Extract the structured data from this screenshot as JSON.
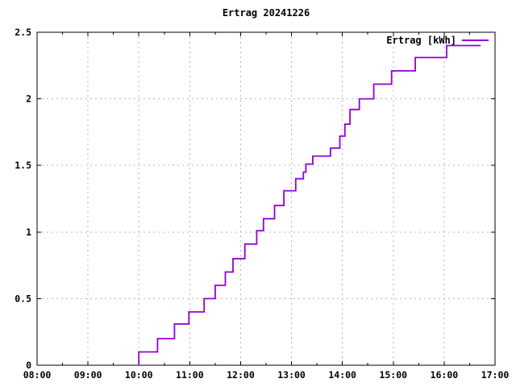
{
  "title": "Ertrag 20241226",
  "chart_data": {
    "type": "line",
    "subtype": "step-after",
    "title": "Ertrag 20241226",
    "legend_label": "Ertrag [kWh]",
    "legend_position": "top-right-inside",
    "grid": true,
    "colors": {
      "line": "#9400d3",
      "grid": "#b5b5b5",
      "axis": "#000000",
      "text": "#000000",
      "background": "#ffffff"
    },
    "xlabel": "",
    "ylabel": "",
    "x_axis": {
      "tick_labels": [
        "08:00",
        "09:00",
        "10:00",
        "11:00",
        "12:00",
        "13:00",
        "14:00",
        "15:00",
        "16:00",
        "17:00"
      ],
      "range_hours": [
        8,
        17
      ],
      "minor_tick_every_minutes": 30
    },
    "y_axis": {
      "tick_labels": [
        "0",
        "0.5",
        "1",
        "1.5",
        "2",
        "2.5"
      ],
      "tick_values": [
        0,
        0.5,
        1,
        1.5,
        2,
        2.5
      ],
      "range": [
        0,
        2.5
      ]
    },
    "series": [
      {
        "name": "Ertrag [kWh]",
        "unit": "kWh",
        "points": [
          [
            "10:00",
            0.0
          ],
          [
            "10:00",
            0.1
          ],
          [
            "10:22",
            0.2
          ],
          [
            "10:42",
            0.31
          ],
          [
            "10:59",
            0.4
          ],
          [
            "11:17",
            0.5
          ],
          [
            "11:30",
            0.6
          ],
          [
            "11:42",
            0.7
          ],
          [
            "11:51",
            0.8
          ],
          [
            "12:05",
            0.91
          ],
          [
            "12:19",
            1.01
          ],
          [
            "12:27",
            1.1
          ],
          [
            "12:40",
            1.2
          ],
          [
            "12:51",
            1.31
          ],
          [
            "13:05",
            1.4
          ],
          [
            "13:14",
            1.45
          ],
          [
            "13:17",
            1.51
          ],
          [
            "13:25",
            1.57
          ],
          [
            "13:46",
            1.63
          ],
          [
            "13:57",
            1.72
          ],
          [
            "14:03",
            1.81
          ],
          [
            "14:09",
            1.92
          ],
          [
            "14:20",
            2.0
          ],
          [
            "14:37",
            2.11
          ],
          [
            "14:58",
            2.21
          ],
          [
            "15:26",
            2.31
          ],
          [
            "16:03",
            2.4
          ],
          [
            "16:43",
            2.4
          ]
        ]
      }
    ]
  }
}
